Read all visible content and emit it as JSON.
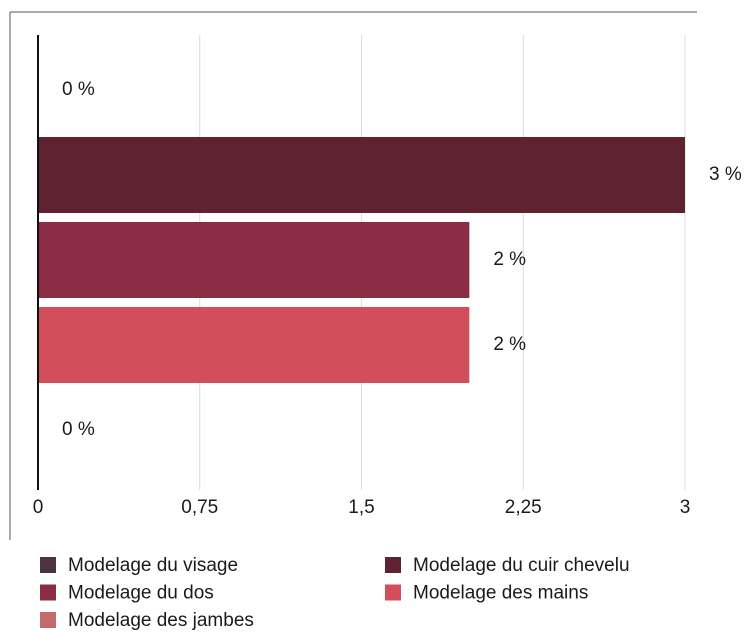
{
  "chart_data": {
    "type": "bar",
    "orientation": "horizontal",
    "series": [
      {
        "name": "Modelage du visage",
        "color": "#4b3343",
        "values": [
          0
        ],
        "value_labels": [
          "0 %"
        ]
      },
      {
        "name": "Modelage du cuir chevelu",
        "color": "#5e2230",
        "values": [
          3
        ],
        "value_labels": [
          "3 %"
        ]
      },
      {
        "name": "Modelage du dos",
        "color": "#8a2c43",
        "values": [
          2
        ],
        "value_labels": [
          "2 %"
        ]
      },
      {
        "name": "Modelage des mains",
        "color": "#d24e5b",
        "values": [
          2
        ],
        "value_labels": [
          "2 %"
        ]
      },
      {
        "name": "Modelage des jambes",
        "color": "#c56b6e",
        "values": [
          0
        ],
        "value_labels": [
          "0 %"
        ]
      }
    ],
    "xlim": [
      0,
      3
    ],
    "xticks": [
      0,
      {
        "value": 0.75,
        "label": "0,75"
      },
      {
        "value": 1.5,
        "label": "1,5"
      },
      {
        "value": 2.25,
        "label": "2,25"
      },
      3
    ],
    "grid": true
  }
}
